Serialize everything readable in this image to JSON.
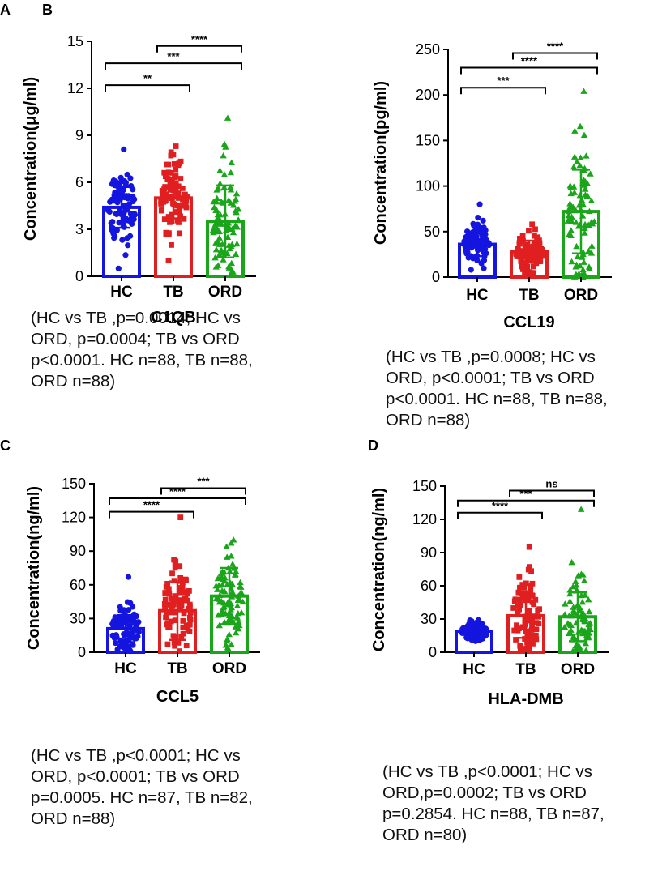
{
  "colors": {
    "HC": "#1515e0",
    "TB": "#e02020",
    "ORD": "#1aa51a"
  },
  "chart_data": [
    {
      "panel": "A",
      "type": "bar",
      "title": "C1QB",
      "ylabel": "Concentration(μg/ml)",
      "ylim": [
        0,
        15
      ],
      "yticks": [
        0,
        3,
        6,
        9,
        12,
        15
      ],
      "tick_labels": [
        "0",
        "3",
        "6",
        "9",
        "12",
        "15"
      ],
      "categories": [
        "HC",
        "TB",
        "ORD"
      ],
      "values": [
        4.4,
        5.0,
        3.5
      ],
      "sd": [
        1.3,
        1.3,
        2.3
      ],
      "point_min": [
        0.5,
        1.0,
        0.2
      ],
      "point_max": [
        8.1,
        8.3,
        10.1
      ],
      "n": [
        88,
        88,
        88
      ],
      "comparisons": [
        {
          "from": 0,
          "to": 1,
          "y": 12.2,
          "label": "**"
        },
        {
          "from": 0,
          "to": 2,
          "y": 13.6,
          "label": "***"
        },
        {
          "from": 1,
          "to": 2,
          "y": 14.7,
          "label": "****"
        }
      ],
      "caption": [
        "(HC vs TB ,p=0.0014;  HC vs",
        "ORD, p=0.0004; TB vs ORD",
        "p<0.0001. HC n=88, TB n=88,",
        "ORD n=88)"
      ]
    },
    {
      "panel": "B",
      "type": "bar",
      "title": "CCL19",
      "ylabel": "Concentration(pg/ml)",
      "ylim": [
        0,
        250
      ],
      "yticks": [
        0,
        50,
        100,
        150,
        200,
        250
      ],
      "tick_labels": [
        "0",
        "50",
        "100",
        "150",
        "200",
        "250"
      ],
      "categories": [
        "HC",
        "TB",
        "ORD"
      ],
      "values": [
        36,
        28,
        72
      ],
      "sd": [
        13,
        12,
        46
      ],
      "point_min": [
        8,
        4,
        0
      ],
      "point_max": [
        80,
        58,
        204
      ],
      "n": [
        88,
        88,
        88
      ],
      "comparisons": [
        {
          "from": 0,
          "to": 1,
          "y": 208,
          "label": "***"
        },
        {
          "from": 0,
          "to": 2,
          "y": 230,
          "label": "****"
        },
        {
          "from": 1,
          "to": 2,
          "y": 246,
          "label": "****"
        }
      ],
      "caption": [
        "(HC vs TB ,p=0.0008;  HC vs",
        "ORD, p<0.0001; TB vs ORD",
        "p<0.0001. HC n=88, TB n=88,",
        "ORD n=88)"
      ]
    },
    {
      "panel": "C",
      "type": "bar",
      "title": "CCL5",
      "ylabel": "Concentration(ng/ml)",
      "ylim": [
        0,
        150
      ],
      "yticks": [
        0,
        30,
        60,
        90,
        120,
        150
      ],
      "tick_labels": [
        "0",
        "30",
        "60",
        "90",
        "120",
        "150"
      ],
      "categories": [
        "HC",
        "TB",
        "ORD"
      ],
      "values": [
        21,
        37,
        50
      ],
      "sd": [
        12,
        26,
        25
      ],
      "point_min": [
        1,
        1,
        3
      ],
      "point_max": [
        67,
        120,
        100
      ],
      "n": [
        87,
        82,
        88
      ],
      "comparisons": [
        {
          "from": 0,
          "to": 1,
          "y": 125,
          "label": "****"
        },
        {
          "from": 0,
          "to": 2,
          "y": 137,
          "label": "****"
        },
        {
          "from": 1,
          "to": 2,
          "y": 146,
          "label": "***"
        }
      ],
      "caption": [
        "(HC vs TB ,p<0.0001;  HC vs",
        "ORD, p<0.0001; TB vs ORD",
        "p=0.0005. HC n=87, TB n=82,",
        "ORD n=88)"
      ]
    },
    {
      "panel": "D",
      "type": "bar",
      "title": "HLA-DMB",
      "ylabel": "Concentration(ng/ml)",
      "ylim": [
        0,
        150
      ],
      "yticks": [
        0,
        30,
        60,
        90,
        120,
        150
      ],
      "tick_labels": [
        "0",
        "30",
        "60",
        "90",
        "120",
        "150"
      ],
      "categories": [
        "HC",
        "TB",
        "ORD"
      ],
      "values": [
        19,
        33,
        32
      ],
      "sd": [
        5,
        20,
        22
      ],
      "point_min": [
        10,
        2,
        1
      ],
      "point_max": [
        29,
        95,
        129
      ],
      "n": [
        88,
        87,
        80
      ],
      "comparisons": [
        {
          "from": 0,
          "to": 1,
          "y": 126,
          "label": "****"
        },
        {
          "from": 0,
          "to": 2,
          "y": 137,
          "label": "***"
        },
        {
          "from": 1,
          "to": 2,
          "y": 146,
          "label": "ns"
        }
      ],
      "caption": [
        "(HC vs TB ,p<0.0001;  HC vs",
        "ORD,p=0.0002; TB vs ORD",
        "p=0.2854. HC n=88, TB n=87,",
        "ORD n=80)"
      ]
    }
  ]
}
